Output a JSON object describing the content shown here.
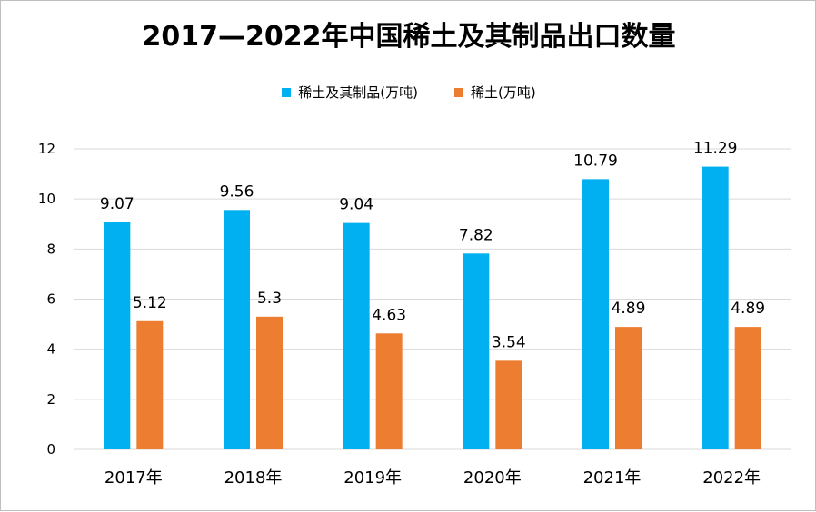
{
  "chart_data": {
    "type": "bar",
    "title": "2017—2022年中国稀土及其制品出口数量",
    "categories": [
      "2017年",
      "2018年",
      "2019年",
      "2020年",
      "2021年",
      "2022年"
    ],
    "series": [
      {
        "name": "稀土及其制品(万吨)",
        "color": "#00b0f0",
        "values": [
          9.07,
          9.56,
          9.04,
          7.82,
          10.79,
          11.29
        ],
        "labels": [
          "9.07",
          "9.56",
          "9.04",
          "7.82",
          "10.79",
          "11.29"
        ]
      },
      {
        "name": "稀土(万吨)",
        "color": "#ed7d31",
        "values": [
          5.12,
          5.3,
          4.63,
          3.54,
          4.89,
          4.89
        ],
        "labels": [
          "5.12",
          "5.3",
          "4.63",
          "3.54",
          "4.89",
          "4.89"
        ]
      }
    ],
    "ylim": [
      0,
      12
    ],
    "yticks": [
      "0",
      "2",
      "4",
      "6",
      "8",
      "10",
      "12"
    ],
    "xlabel": "",
    "ylabel": "",
    "grid": true,
    "legend_position": "top"
  }
}
